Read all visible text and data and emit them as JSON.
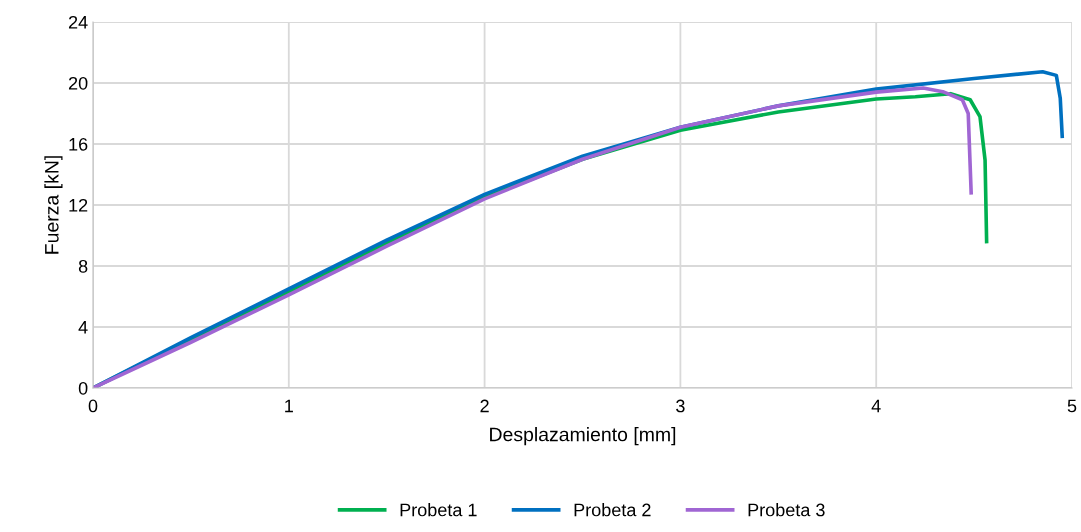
{
  "chart_data": {
    "type": "line",
    "xlabel": "Desplazamiento [mm]",
    "ylabel": "Fuerza [kN]",
    "xlim": [
      0,
      5
    ],
    "xticks": [
      0,
      1,
      2,
      3,
      4,
      5
    ],
    "ylim": [
      0,
      24
    ],
    "yticks": [
      0,
      4,
      8,
      12,
      16,
      20,
      24
    ],
    "grid": true,
    "legend": "bottom",
    "marker": "none",
    "line_style": "solid",
    "series": [
      {
        "name": "Probeta 1",
        "color": "#00b050",
        "x": [
          0,
          0.5,
          1,
          1.5,
          2,
          2.5,
          3,
          3.5,
          4,
          4.2,
          4.38,
          4.48,
          4.53,
          4.556,
          4.564
        ],
        "values": [
          0,
          3.2,
          6.3,
          9.5,
          12.5,
          15.0,
          16.9,
          18.1,
          18.95,
          19.1,
          19.3,
          18.9,
          17.8,
          14.95,
          9.6
        ]
      },
      {
        "name": "Probeta 2",
        "color": "#0070c0",
        "x": [
          0,
          0.5,
          1,
          1.5,
          2,
          2.5,
          3,
          3.5,
          4,
          4.5,
          4.85,
          4.92,
          4.94,
          4.95
        ],
        "values": [
          0,
          3.3,
          6.5,
          9.7,
          12.7,
          15.2,
          17.1,
          18.5,
          19.6,
          20.3,
          20.74,
          20.5,
          19.0,
          16.5
        ]
      },
      {
        "name": "Probeta 3",
        "color": "#a066d3",
        "x": [
          0,
          0.5,
          1,
          1.5,
          2,
          2.5,
          3,
          3.5,
          4,
          4.24,
          4.34,
          4.44,
          4.47,
          4.485
        ],
        "values": [
          0,
          3.0,
          6.1,
          9.3,
          12.4,
          15.0,
          17.1,
          18.5,
          19.4,
          19.67,
          19.43,
          18.9,
          18.0,
          12.8
        ]
      }
    ]
  }
}
